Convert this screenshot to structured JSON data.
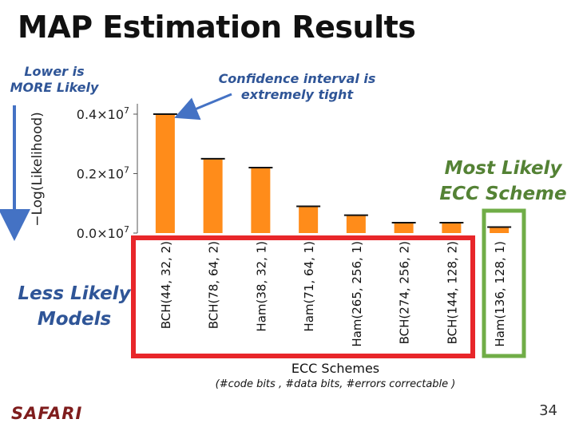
{
  "slide": {
    "title": "MAP Estimation Results",
    "lower_note": "Lower is MORE Likely",
    "confidence_note": "Confidence interval is extremely tight",
    "most_likely": "Most Likely ECC Scheme",
    "less_likely": "Less Likely Models",
    "x_note": "(#code bits , #data bits, #errors correctable )",
    "logo": "SAFARI",
    "page_number": "34"
  },
  "colors": {
    "bar": "#ff8c1a",
    "error_bar": "#111111",
    "blue_arrow": "#4472c4",
    "red_box": "#e8262a",
    "green_box": "#70ad47"
  },
  "chart_data": {
    "type": "bar",
    "title": "",
    "xlabel": "ECC Schemes",
    "ylabel": "−Log(Likelihood)",
    "ylim": [
      0,
      4500000.0
    ],
    "yticks": [
      {
        "value": 0.0,
        "label": "0.0×10"
      },
      {
        "value": 2000000,
        "label": "0.2×10"
      },
      {
        "value": 4000000,
        "label": "0.4×10"
      }
    ],
    "ytick_exponent": "7",
    "categories": [
      "BCH(44, 32, 2)",
      "BCH(78, 64, 2)",
      "Ham(38, 32, 1)",
      "Ham(71, 64, 1)",
      "Ham(265, 256, 1)",
      "BCH(274, 256, 2)",
      "BCH(144, 128, 2)",
      "Ham(136, 128, 1)"
    ],
    "values": [
      4000000,
      2500000,
      2200000,
      900000,
      600000,
      350000,
      350000,
      200000
    ]
  }
}
